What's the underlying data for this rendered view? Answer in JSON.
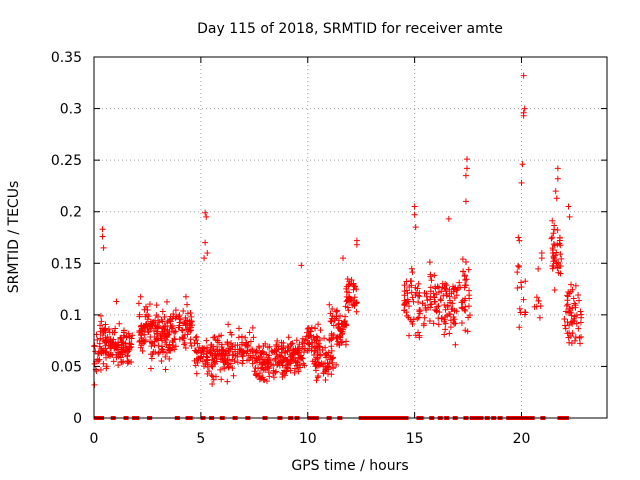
{
  "chart_data": {
    "type": "scatter",
    "title": "Day 115 of 2018, SRMTID for receiver amte",
    "xlabel": "GPS time / hours",
    "ylabel": "SRMTID / TECUs",
    "xlim": [
      0,
      24
    ],
    "ylim": [
      0,
      0.35
    ],
    "x_ticks": [
      0,
      5,
      10,
      15,
      20
    ],
    "x_tick_labels": [
      "0",
      "5",
      "10",
      "15",
      "20"
    ],
    "y_ticks": [
      0,
      0.05,
      0.1,
      0.15,
      0.2,
      0.25,
      0.3,
      0.35
    ],
    "y_tick_labels": [
      "0",
      "0.05",
      "0.1",
      "0.15",
      "0.2",
      "0.25",
      "0.3",
      "0.35"
    ],
    "grid": true,
    "marker": "+",
    "color": "#ff0000",
    "clusters": [
      {
        "x_range": [
          0.0,
          0.3
        ],
        "y_center": 0.065,
        "y_spread": 0.03,
        "count": 20
      },
      {
        "x_range": [
          0.3,
          0.6
        ],
        "y_center": 0.07,
        "y_spread": 0.03,
        "count": 25
      },
      {
        "x_range": [
          0.5,
          1.0
        ],
        "y_center": 0.07,
        "y_spread": 0.025,
        "count": 45
      },
      {
        "x_range": [
          1.0,
          1.8
        ],
        "y_center": 0.07,
        "y_spread": 0.02,
        "count": 70
      },
      {
        "x_range": [
          2.1,
          3.0
        ],
        "y_center": 0.085,
        "y_spread": 0.03,
        "count": 90
      },
      {
        "x_range": [
          3.0,
          3.8
        ],
        "y_center": 0.08,
        "y_spread": 0.03,
        "count": 75
      },
      {
        "x_range": [
          3.8,
          4.6
        ],
        "y_center": 0.09,
        "y_spread": 0.025,
        "count": 55
      },
      {
        "x_range": [
          4.7,
          5.3
        ],
        "y_center": 0.065,
        "y_spread": 0.025,
        "count": 40
      },
      {
        "x_range": [
          5.3,
          6.3
        ],
        "y_center": 0.06,
        "y_spread": 0.025,
        "count": 85
      },
      {
        "x_range": [
          6.3,
          7.5
        ],
        "y_center": 0.065,
        "y_spread": 0.025,
        "count": 70
      },
      {
        "x_range": [
          7.5,
          8.5
        ],
        "y_center": 0.055,
        "y_spread": 0.02,
        "count": 80
      },
      {
        "x_range": [
          8.5,
          9.8
        ],
        "y_center": 0.06,
        "y_spread": 0.022,
        "count": 120
      },
      {
        "x_range": [
          9.8,
          10.6
        ],
        "y_center": 0.07,
        "y_spread": 0.025,
        "count": 55
      },
      {
        "x_range": [
          10.3,
          11.2
        ],
        "y_center": 0.055,
        "y_spread": 0.02,
        "count": 60
      },
      {
        "x_range": [
          11.0,
          11.8
        ],
        "y_center": 0.085,
        "y_spread": 0.025,
        "count": 65
      },
      {
        "x_range": [
          11.8,
          12.3
        ],
        "y_center": 0.12,
        "y_spread": 0.02,
        "count": 40
      },
      {
        "x_range": [
          14.5,
          15.5
        ],
        "y_center": 0.11,
        "y_spread": 0.035,
        "count": 60
      },
      {
        "x_range": [
          15.5,
          16.3
        ],
        "y_center": 0.115,
        "y_spread": 0.03,
        "count": 45
      },
      {
        "x_range": [
          16.3,
          17.0
        ],
        "y_center": 0.11,
        "y_spread": 0.035,
        "count": 50
      },
      {
        "x_range": [
          17.0,
          17.6
        ],
        "y_center": 0.12,
        "y_spread": 0.04,
        "count": 35
      },
      {
        "x_range": [
          19.8,
          20.2
        ],
        "y_center": 0.12,
        "y_spread": 0.04,
        "count": 14
      },
      {
        "x_range": [
          20.6,
          20.9
        ],
        "y_center": 0.11,
        "y_spread": 0.03,
        "count": 8
      },
      {
        "x_range": [
          21.4,
          21.9
        ],
        "y_center": 0.16,
        "y_spread": 0.04,
        "count": 40
      },
      {
        "x_range": [
          22.0,
          22.8
        ],
        "y_center": 0.1,
        "y_spread": 0.04,
        "count": 55
      }
    ],
    "extra_points": [
      [
        0.4,
        0.183
      ],
      [
        0.4,
        0.176
      ],
      [
        0.45,
        0.165
      ],
      [
        1.05,
        0.113
      ],
      [
        5.2,
        0.199
      ],
      [
        5.25,
        0.195
      ],
      [
        5.2,
        0.17
      ],
      [
        5.15,
        0.155
      ],
      [
        5.3,
        0.16
      ],
      [
        9.7,
        0.148
      ],
      [
        11.65,
        0.155
      ],
      [
        12.3,
        0.172
      ],
      [
        12.3,
        0.168
      ],
      [
        15.0,
        0.205
      ],
      [
        15.0,
        0.197
      ],
      [
        15.05,
        0.185
      ],
      [
        16.6,
        0.193
      ],
      [
        17.45,
        0.251
      ],
      [
        17.45,
        0.242
      ],
      [
        17.4,
        0.235
      ],
      [
        17.4,
        0.21
      ],
      [
        20.1,
        0.332
      ],
      [
        20.15,
        0.3
      ],
      [
        20.1,
        0.296
      ],
      [
        20.1,
        0.293
      ],
      [
        20.05,
        0.246
      ],
      [
        20.0,
        0.228
      ],
      [
        19.85,
        0.175
      ],
      [
        19.9,
        0.172
      ],
      [
        20.95,
        0.16
      ],
      [
        20.95,
        0.155
      ],
      [
        21.7,
        0.242
      ],
      [
        21.7,
        0.232
      ],
      [
        21.6,
        0.22
      ],
      [
        21.65,
        0.213
      ],
      [
        22.2,
        0.205
      ],
      [
        22.25,
        0.195
      ]
    ],
    "zero_points_x": [
      0.1,
      0.2,
      0.3,
      0.35,
      0.9,
      1.5,
      1.9,
      2.0,
      2.6,
      3.9,
      4.4,
      4.5,
      5.1,
      5.5,
      6.0,
      6.6,
      7.2,
      8.0,
      8.7,
      9.2,
      9.5,
      10.1,
      10.3,
      10.4,
      11.0,
      11.5,
      12.5,
      12.6,
      12.7,
      12.8,
      12.9,
      13.0,
      13.1,
      13.2,
      13.3,
      13.4,
      13.5,
      13.6,
      13.7,
      13.8,
      13.9,
      14.0,
      14.1,
      14.2,
      14.3,
      14.5,
      14.6,
      15.2,
      15.3,
      15.8,
      16.2,
      16.5,
      16.9,
      17.4,
      17.7,
      17.9,
      18.1,
      18.4,
      18.7,
      19.0,
      19.4,
      19.6,
      19.7,
      19.8,
      20.0,
      20.2,
      20.3,
      20.4,
      20.5,
      21.0,
      21.8,
      21.9,
      22.0,
      22.1
    ]
  }
}
